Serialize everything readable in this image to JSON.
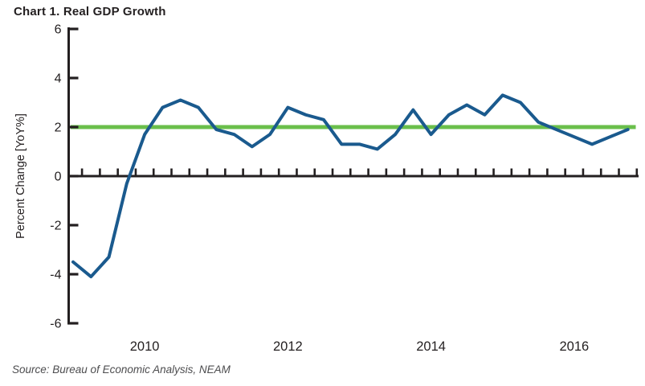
{
  "page": {
    "title": "Chart 1. Real GDP Growth",
    "source_note": "Source: Bureau of Economic Analysis, NEAM"
  },
  "colors": {
    "gdp_line": "#1a5a8e",
    "reference_line": "#6abf4b",
    "axis": "#231f20",
    "tick_text": "#231f20",
    "source_text": "#4d4d4f",
    "background": "#ffffff"
  },
  "chart_data": {
    "type": "line",
    "title": "Chart 1. Real GDP Growth",
    "xlabel": "",
    "ylabel": "Percent Change [YoY%]",
    "ylim": [
      -6,
      6
    ],
    "yticks": [
      6,
      4,
      2,
      0,
      -2,
      -4,
      -6
    ],
    "x_tick_interval": "quarterly",
    "grid": false,
    "legend_position": "none",
    "x": [
      "2009Q1",
      "2009Q2",
      "2009Q3",
      "2009Q4",
      "2010Q1",
      "2010Q2",
      "2010Q3",
      "2010Q4",
      "2011Q1",
      "2011Q2",
      "2011Q3",
      "2011Q4",
      "2012Q1",
      "2012Q2",
      "2012Q3",
      "2012Q4",
      "2013Q1",
      "2013Q2",
      "2013Q3",
      "2013Q4",
      "2014Q1",
      "2014Q2",
      "2014Q3",
      "2014Q4",
      "2015Q1",
      "2015Q2",
      "2015Q3",
      "2015Q4",
      "2016Q1",
      "2016Q2",
      "2016Q3",
      "2016Q4"
    ],
    "x_year_labels": [
      {
        "label": "2010",
        "point_index": 4
      },
      {
        "label": "2012",
        "point_index": 12
      },
      {
        "label": "2014",
        "point_index": 20
      },
      {
        "label": "2016",
        "point_index": 28
      }
    ],
    "series": [
      {
        "name": "Real GDP Growth (YoY%)",
        "color": "#1a5a8e",
        "values": [
          -3.5,
          -4.1,
          -3.3,
          -0.3,
          1.7,
          2.8,
          3.1,
          2.8,
          1.9,
          1.7,
          1.2,
          1.7,
          2.8,
          2.5,
          2.3,
          1.3,
          1.3,
          1.1,
          1.7,
          2.7,
          1.7,
          2.5,
          2.9,
          2.5,
          3.3,
          3.0,
          2.2,
          1.9,
          1.6,
          1.3,
          1.6,
          1.9
        ]
      }
    ],
    "reference_line": {
      "value": 2.0,
      "color": "#6abf4b"
    }
  }
}
